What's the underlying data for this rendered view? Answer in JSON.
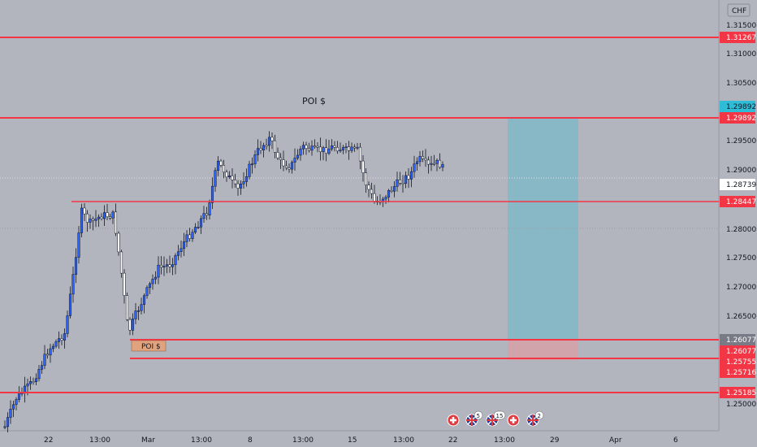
{
  "currency_label": "CHF",
  "price_axis": {
    "min": 1.246,
    "max": 1.3175,
    "labels": [
      "1.31500",
      "1.31000",
      "1.30500",
      "1.30000",
      "1.29500",
      "1.29000",
      "1.28000",
      "1.27500",
      "1.27000",
      "1.26500",
      "1.25000"
    ]
  },
  "levels": {
    "top": "1.31267",
    "poi_high": "1.29892",
    "poi_high_current": "1.29892",
    "mid": "1.28447",
    "current": "1.28739",
    "low_a": "1.26077",
    "low_a_red": "1.26077",
    "low_b": "1.25755",
    "low_c": "1.25716",
    "bottom": "1.25185"
  },
  "annotations": {
    "poi_upper": "POI $",
    "poi_lower": "POI $"
  },
  "time_axis": {
    "labels": [
      "22",
      "13:00",
      "Mar",
      "13:00",
      "8",
      "13:00",
      "15",
      "13:00",
      "22",
      "13:00",
      "29",
      "Apr",
      "6"
    ]
  },
  "events": [
    {
      "icon": "swiss-flag-icon",
      "badge": ""
    },
    {
      "icon": "uk-flag-icon",
      "badge": "5"
    },
    {
      "icon": "uk-flag-icon",
      "badge": "15"
    },
    {
      "icon": "swiss-flag-icon",
      "badge": ""
    },
    {
      "icon": "uk-flag-icon",
      "badge": "2"
    }
  ],
  "colors": {
    "up": "#2962ff",
    "down": "#ffffff",
    "level_line": "#f23645",
    "target_zone": "#7ab8c8",
    "stop_zone": "#d8a0a8",
    "current_price": "#2fbcd6"
  }
}
